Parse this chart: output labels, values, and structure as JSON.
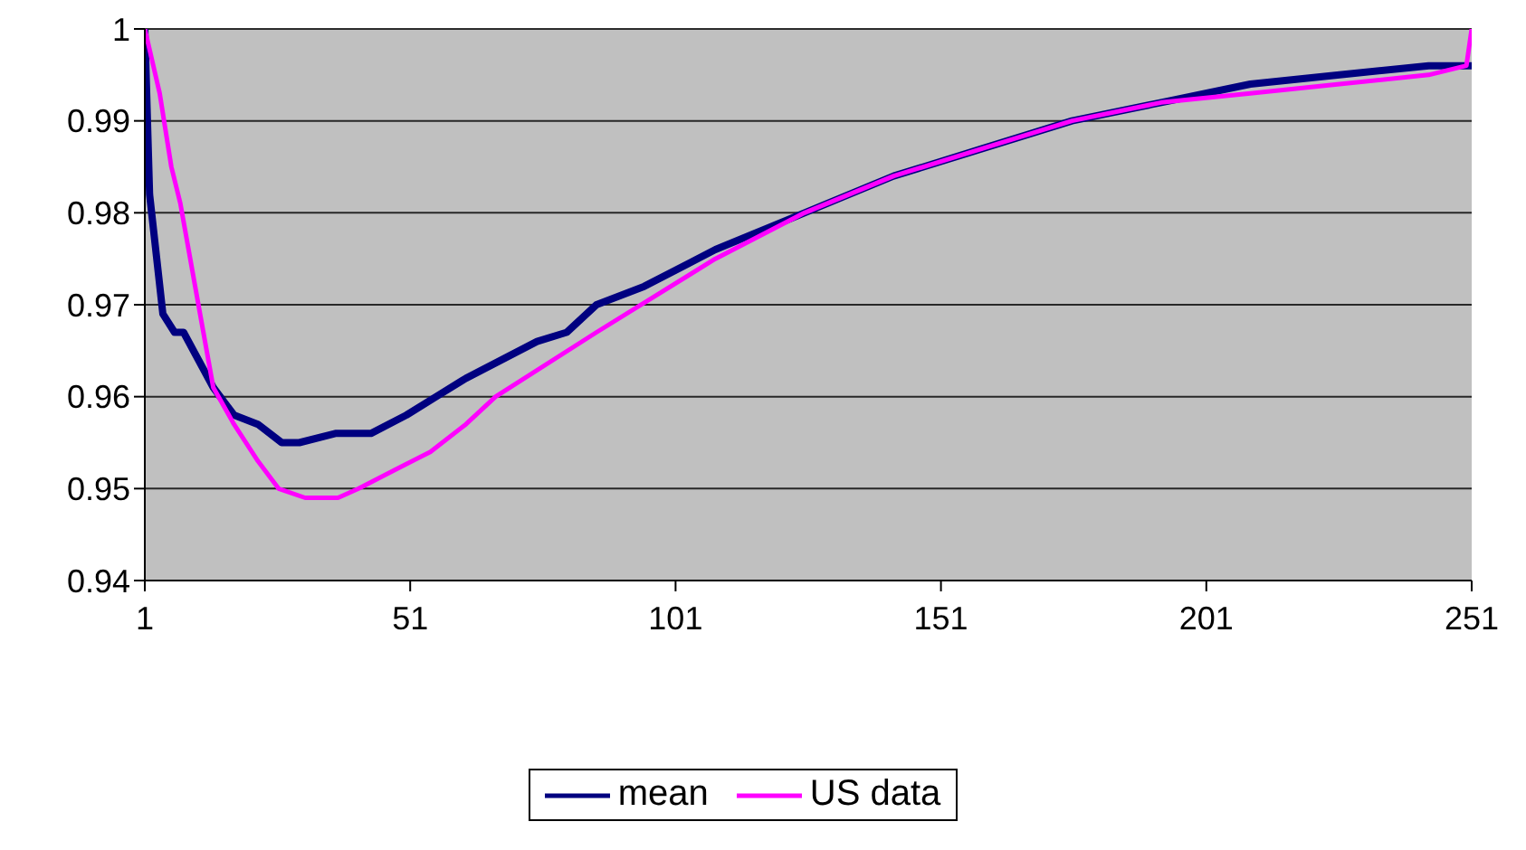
{
  "chart_data": {
    "type": "line",
    "xlim": [
      1,
      251
    ],
    "xticks": [
      1,
      51,
      101,
      151,
      201,
      251
    ],
    "ylim": [
      0.94,
      1
    ],
    "yticks": [
      0.94,
      0.95,
      0.96,
      0.97,
      0.98,
      0.99,
      1
    ],
    "grid": "y",
    "legend": "bottom",
    "marker": "none",
    "line_style": "solid",
    "series": [
      {
        "name": "mean",
        "color": "#000080",
        "x": [
          1,
          1.9,
          4.4,
          6.6,
          8.3,
          11.1,
          13.9,
          17.8,
          22.3,
          26.8,
          30.1,
          36.9,
          43.6,
          50.3,
          55.9,
          61.5,
          74.9,
          80.5,
          86.1,
          95.1,
          108.5,
          125.3,
          142.1,
          158.9,
          175.7,
          192.5,
          209.3,
          226.1,
          242.9,
          250,
          251
        ],
        "values": [
          1,
          0.982,
          0.969,
          0.967,
          0.967,
          0.964,
          0.961,
          0.958,
          0.957,
          0.955,
          0.955,
          0.956,
          0.956,
          0.958,
          0.96,
          0.962,
          0.966,
          0.967,
          0.97,
          0.972,
          0.976,
          0.98,
          0.984,
          0.987,
          0.99,
          0.992,
          0.994,
          0.995,
          0.996,
          0.996,
          0.996
        ]
      },
      {
        "name": "US data",
        "color": "#ff00ff",
        "x": [
          1,
          3.8,
          6,
          7.7,
          11.1,
          13.9,
          17.8,
          22.3,
          26.2,
          31.2,
          37.4,
          41.3,
          48,
          54.8,
          61.5,
          67.1,
          86.1,
          108.5,
          125.3,
          142.1,
          158.9,
          175.7,
          192.5,
          209.3,
          226.1,
          242.9,
          250,
          251
        ],
        "values": [
          1,
          0.993,
          0.985,
          0.981,
          0.97,
          0.961,
          0.957,
          0.953,
          0.95,
          0.949,
          0.949,
          0.95,
          0.952,
          0.954,
          0.957,
          0.96,
          0.967,
          0.975,
          0.98,
          0.984,
          0.987,
          0.99,
          0.992,
          0.993,
          0.994,
          0.995,
          0.996,
          1
        ]
      }
    ]
  }
}
